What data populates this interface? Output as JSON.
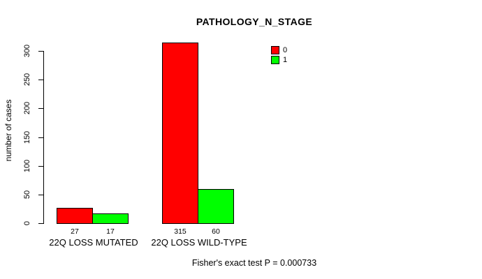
{
  "chart_data": {
    "type": "bar",
    "title": "PATHOLOGY_N_STAGE",
    "categories": [
      "22Q LOSS MUTATED",
      "22Q LOSS WILD-TYPE"
    ],
    "series": [
      {
        "name": "0",
        "color": "#ff0000",
        "values": [
          27,
          315
        ]
      },
      {
        "name": "1",
        "color": "#00ff00",
        "values": [
          17,
          60
        ]
      }
    ],
    "bar_value_labels": [
      [
        "27",
        "315"
      ],
      [
        "17",
        "60"
      ]
    ],
    "xlabel": "",
    "ylabel": "number of cases",
    "ylim": [
      0,
      300
    ],
    "yticks": [
      0,
      50,
      100,
      150,
      200,
      250,
      300
    ],
    "grid": false,
    "legend_position": "top-right",
    "annotation": "Fisher's exact test P = 0.000733"
  },
  "colors": {
    "background": "#ffffff",
    "text": "#000000",
    "axis": "#000000",
    "series_0": "#ff0000",
    "series_1": "#00ff00"
  }
}
